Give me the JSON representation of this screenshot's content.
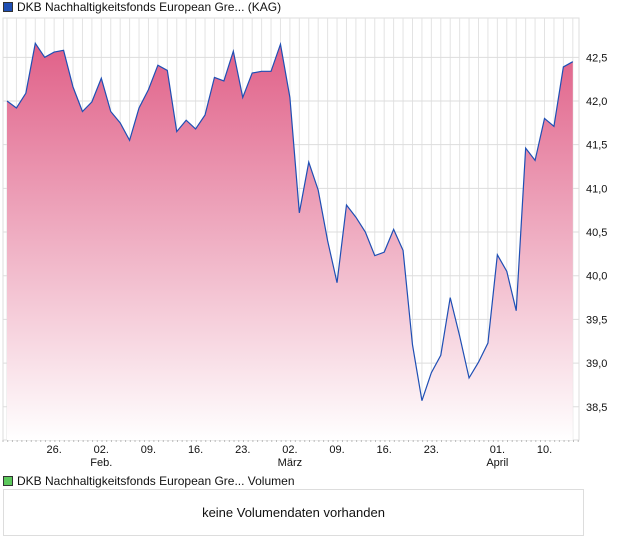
{
  "legend": {
    "price_label": "DKB Nachhaltigkeitsfonds European Gre... (KAG)",
    "volume_label": "DKB Nachhaltigkeitsfonds European Gre... Volumen",
    "price_color": "#1f4fb4",
    "volume_color": "#5cc85c"
  },
  "volume_message": "keine Volumendaten vorhanden",
  "chart_data": {
    "type": "area",
    "title": "DKB Nachhaltigkeitsfonds European Gre... (KAG)",
    "xlabel": "",
    "ylabel": "",
    "ylim": [
      38.12,
      42.95
    ],
    "yticks": [
      38.5,
      39.0,
      39.5,
      40.0,
      40.5,
      41.0,
      41.5,
      42.0,
      42.5
    ],
    "ytick_labels": [
      "38,5",
      "39,0",
      "39,5",
      "40,0",
      "40,5",
      "41,0",
      "41,5",
      "42,0",
      "42,5"
    ],
    "xticks": [
      {
        "index": 5,
        "label": "26.",
        "month": ""
      },
      {
        "index": 10,
        "label": "02.",
        "month": "Feb."
      },
      {
        "index": 15,
        "label": "09.",
        "month": ""
      },
      {
        "index": 20,
        "label": "16.",
        "month": ""
      },
      {
        "index": 25,
        "label": "23.",
        "month": ""
      },
      {
        "index": 30,
        "label": "02.",
        "month": "März"
      },
      {
        "index": 35,
        "label": "09.",
        "month": ""
      },
      {
        "index": 40,
        "label": "16.",
        "month": ""
      },
      {
        "index": 45,
        "label": "23.",
        "month": ""
      },
      {
        "index": 52,
        "label": "01.",
        "month": "April"
      },
      {
        "index": 57,
        "label": "10.",
        "month": ""
      }
    ],
    "grid": true,
    "line_color": "#1f4fb4",
    "fill_top_color": "#e06088",
    "values": [
      42.0,
      41.92,
      42.09,
      42.66,
      42.5,
      42.56,
      42.58,
      42.16,
      41.88,
      41.99,
      42.26,
      41.88,
      41.75,
      41.55,
      41.92,
      42.13,
      42.41,
      42.35,
      41.65,
      41.78,
      41.68,
      41.84,
      42.27,
      42.23,
      42.57,
      42.04,
      42.32,
      42.34,
      42.34,
      42.65,
      42.04,
      40.72,
      41.3,
      40.98,
      40.4,
      39.92,
      40.81,
      40.67,
      40.5,
      40.23,
      40.27,
      40.53,
      40.29,
      39.21,
      38.57,
      38.89,
      39.09,
      39.75,
      39.31,
      38.83,
      39.01,
      39.23,
      40.24,
      40.05,
      39.6,
      41.46,
      41.32,
      41.8,
      41.71,
      42.39,
      42.45
    ]
  }
}
